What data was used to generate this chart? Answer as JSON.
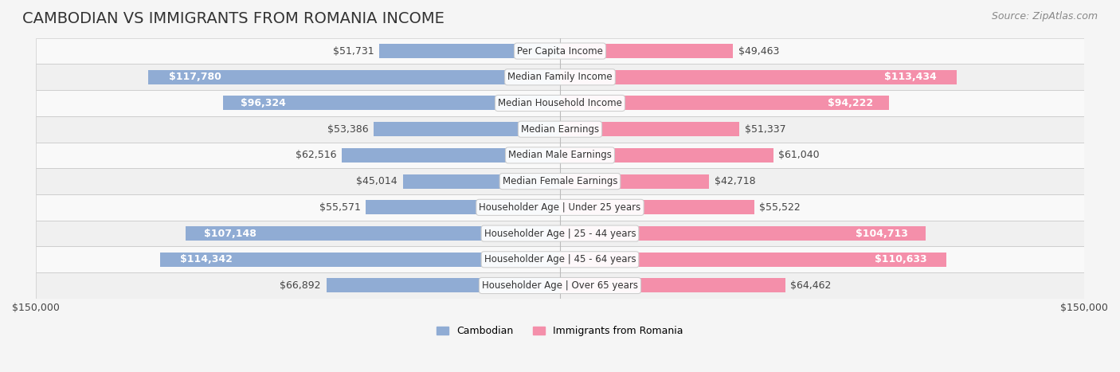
{
  "title": "CAMBODIAN VS IMMIGRANTS FROM ROMANIA INCOME",
  "source": "Source: ZipAtlas.com",
  "categories": [
    "Per Capita Income",
    "Median Family Income",
    "Median Household Income",
    "Median Earnings",
    "Median Male Earnings",
    "Median Female Earnings",
    "Householder Age | Under 25 years",
    "Householder Age | 25 - 44 years",
    "Householder Age | 45 - 64 years",
    "Householder Age | Over 65 years"
  ],
  "cambodian_values": [
    51731,
    117780,
    96324,
    53386,
    62516,
    45014,
    55571,
    107148,
    114342,
    66892
  ],
  "romania_values": [
    49463,
    113434,
    94222,
    51337,
    61040,
    42718,
    55522,
    104713,
    110633,
    64462
  ],
  "max_value": 150000,
  "cambodian_color": "#90acd4",
  "cambodian_color_dark": "#6b8fc2",
  "romania_color": "#f48faa",
  "romania_color_dark": "#e8728f",
  "label_color_light": "#555555",
  "label_color_white": "#ffffff",
  "bar_height": 0.55,
  "background_color": "#f5f5f5",
  "row_bg_light": "#f9f9f9",
  "row_bg_dark": "#f0f0f0",
  "label_threshold": 70000,
  "title_fontsize": 14,
  "source_fontsize": 9,
  "bar_label_fontsize": 9,
  "category_fontsize": 8.5,
  "legend_fontsize": 9,
  "axis_label_fontsize": 9
}
